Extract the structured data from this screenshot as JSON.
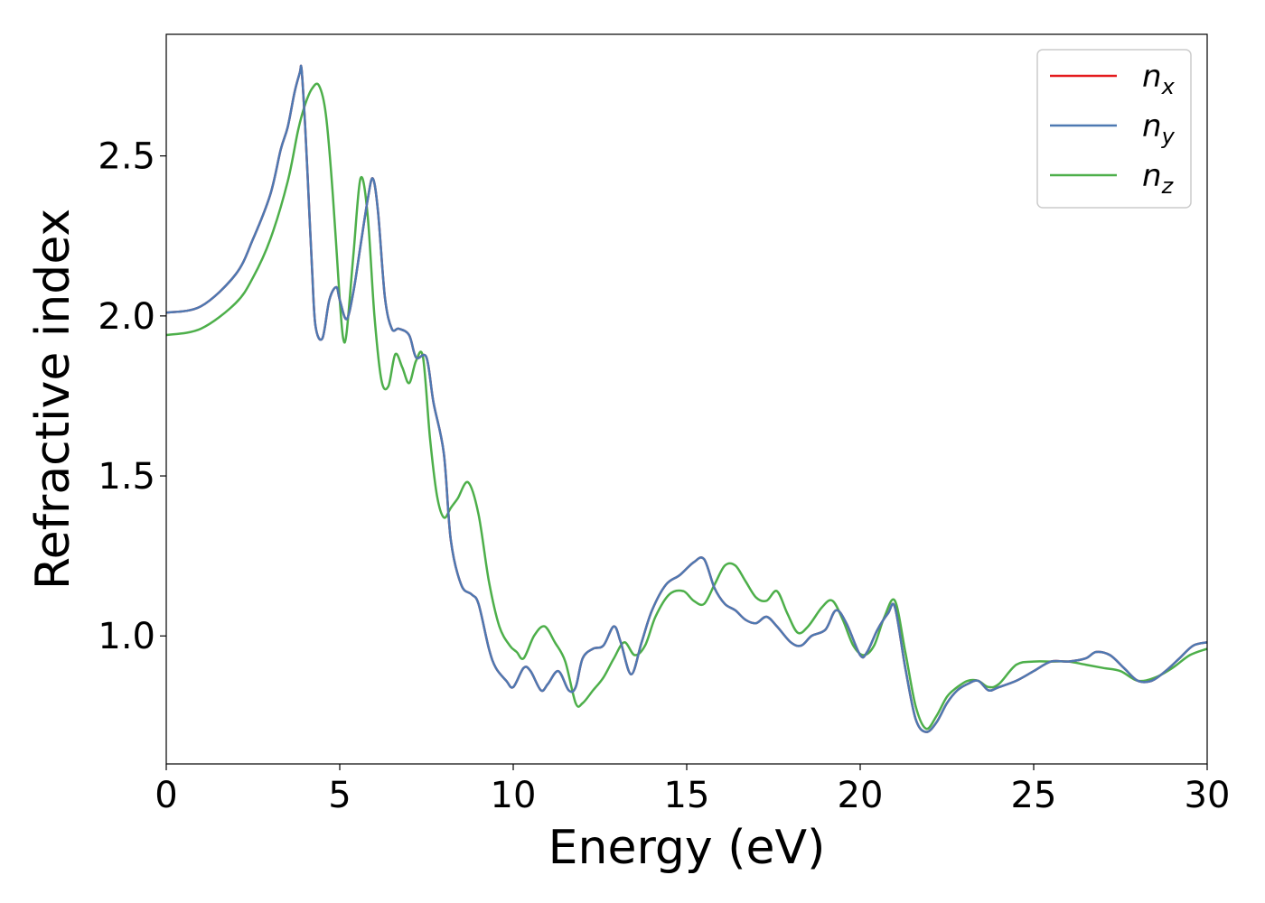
{
  "chart_data": {
    "type": "line",
    "xlabel": "Energy (eV)",
    "ylabel": "Refractive index",
    "xlim": [
      0,
      30
    ],
    "ylim": [
      0.6,
      2.88
    ],
    "xticks": [
      0,
      5,
      10,
      15,
      20,
      25,
      30
    ],
    "xtick_labels": [
      "0",
      "5",
      "10",
      "15",
      "20",
      "25",
      "30"
    ],
    "yticks": [
      1.0,
      1.5,
      2.0,
      2.5
    ],
    "ytick_labels": [
      "1.0",
      "1.5",
      "2.0",
      "2.5"
    ],
    "grid": false,
    "legend_position": "top-right",
    "series": [
      {
        "name": "n",
        "subscript": "x",
        "color": "#e41a1c",
        "x": [
          0,
          1,
          2,
          2.5,
          3,
          3.3,
          3.5,
          3.7,
          3.85,
          3.9,
          4.0,
          4.1,
          4.2,
          4.3,
          4.5,
          4.7,
          4.9,
          5.0,
          5.2,
          5.4,
          5.6,
          5.8,
          5.95,
          6.1,
          6.3,
          6.5,
          6.7,
          7.0,
          7.2,
          7.5,
          7.7,
          8.0,
          8.2,
          8.5,
          8.8,
          9.0,
          9.3,
          9.5,
          9.8,
          10.0,
          10.3,
          10.5,
          10.8,
          11.0,
          11.3,
          11.6,
          11.8,
          12.0,
          12.3,
          12.6,
          12.9,
          13.1,
          13.4,
          13.7,
          14.0,
          14.4,
          14.8,
          15.2,
          15.5,
          15.8,
          16.1,
          16.4,
          16.7,
          17.0,
          17.3,
          17.6,
          18.0,
          18.3,
          18.6,
          19.0,
          19.3,
          19.6,
          20.0,
          20.2,
          20.5,
          20.8,
          21.0,
          21.3,
          21.6,
          21.9,
          22.2,
          22.5,
          22.8,
          23.1,
          23.4,
          23.7,
          24.0,
          24.5,
          25.0,
          25.5,
          26.0,
          26.5,
          26.8,
          27.2,
          27.6,
          28.0,
          28.4,
          28.8,
          29.2,
          29.6,
          30.0
        ],
        "values": [
          2.01,
          2.03,
          2.13,
          2.24,
          2.38,
          2.52,
          2.59,
          2.7,
          2.76,
          2.77,
          2.6,
          2.38,
          2.15,
          1.97,
          1.93,
          2.05,
          2.09,
          2.05,
          1.99,
          2.08,
          2.22,
          2.36,
          2.43,
          2.33,
          2.06,
          1.96,
          1.96,
          1.94,
          1.87,
          1.87,
          1.73,
          1.57,
          1.3,
          1.16,
          1.13,
          1.1,
          0.96,
          0.9,
          0.86,
          0.84,
          0.9,
          0.89,
          0.83,
          0.85,
          0.89,
          0.83,
          0.84,
          0.93,
          0.96,
          0.97,
          1.03,
          0.98,
          0.88,
          0.98,
          1.08,
          1.16,
          1.19,
          1.23,
          1.24,
          1.15,
          1.1,
          1.08,
          1.05,
          1.04,
          1.06,
          1.03,
          0.98,
          0.97,
          1.0,
          1.02,
          1.08,
          1.04,
          0.94,
          0.95,
          1.02,
          1.07,
          1.09,
          0.9,
          0.74,
          0.7,
          0.73,
          0.79,
          0.83,
          0.85,
          0.86,
          0.83,
          0.84,
          0.86,
          0.89,
          0.92,
          0.92,
          0.93,
          0.95,
          0.94,
          0.9,
          0.86,
          0.86,
          0.89,
          0.93,
          0.97,
          0.98
        ]
      },
      {
        "name": "n",
        "subscript": "y",
        "color": "#4d79b2",
        "x": [
          0,
          1,
          2,
          2.5,
          3,
          3.3,
          3.5,
          3.7,
          3.85,
          3.9,
          4.0,
          4.1,
          4.2,
          4.3,
          4.5,
          4.7,
          4.9,
          5.0,
          5.2,
          5.4,
          5.6,
          5.8,
          5.95,
          6.1,
          6.3,
          6.5,
          6.7,
          7.0,
          7.2,
          7.5,
          7.7,
          8.0,
          8.2,
          8.5,
          8.8,
          9.0,
          9.3,
          9.5,
          9.8,
          10.0,
          10.3,
          10.5,
          10.8,
          11.0,
          11.3,
          11.6,
          11.8,
          12.0,
          12.3,
          12.6,
          12.9,
          13.1,
          13.4,
          13.7,
          14.0,
          14.4,
          14.8,
          15.2,
          15.5,
          15.8,
          16.1,
          16.4,
          16.7,
          17.0,
          17.3,
          17.6,
          18.0,
          18.3,
          18.6,
          19.0,
          19.3,
          19.6,
          20.0,
          20.2,
          20.5,
          20.8,
          21.0,
          21.3,
          21.6,
          21.9,
          22.2,
          22.5,
          22.8,
          23.1,
          23.4,
          23.7,
          24.0,
          24.5,
          25.0,
          25.5,
          26.0,
          26.5,
          26.8,
          27.2,
          27.6,
          28.0,
          28.4,
          28.8,
          29.2,
          29.6,
          30.0
        ],
        "values": [
          2.01,
          2.03,
          2.13,
          2.24,
          2.38,
          2.52,
          2.59,
          2.7,
          2.76,
          2.77,
          2.6,
          2.38,
          2.15,
          1.97,
          1.93,
          2.05,
          2.09,
          2.05,
          1.99,
          2.08,
          2.22,
          2.36,
          2.43,
          2.33,
          2.06,
          1.96,
          1.96,
          1.94,
          1.87,
          1.87,
          1.73,
          1.57,
          1.3,
          1.16,
          1.13,
          1.1,
          0.96,
          0.9,
          0.86,
          0.84,
          0.9,
          0.89,
          0.83,
          0.85,
          0.89,
          0.83,
          0.84,
          0.93,
          0.96,
          0.97,
          1.03,
          0.98,
          0.88,
          0.98,
          1.08,
          1.16,
          1.19,
          1.23,
          1.24,
          1.15,
          1.1,
          1.08,
          1.05,
          1.04,
          1.06,
          1.03,
          0.98,
          0.97,
          1.0,
          1.02,
          1.08,
          1.04,
          0.94,
          0.95,
          1.02,
          1.07,
          1.09,
          0.9,
          0.74,
          0.7,
          0.73,
          0.79,
          0.83,
          0.85,
          0.86,
          0.83,
          0.84,
          0.86,
          0.89,
          0.92,
          0.92,
          0.93,
          0.95,
          0.94,
          0.9,
          0.86,
          0.86,
          0.89,
          0.93,
          0.97,
          0.98
        ]
      },
      {
        "name": "n",
        "subscript": "z",
        "color": "#4daf4a",
        "x": [
          0,
          1,
          2,
          2.5,
          3,
          3.5,
          3.8,
          4.0,
          4.2,
          4.4,
          4.6,
          4.8,
          5.0,
          5.1,
          5.2,
          5.4,
          5.6,
          5.8,
          6.0,
          6.2,
          6.4,
          6.6,
          6.8,
          7.0,
          7.2,
          7.4,
          7.6,
          7.8,
          8.0,
          8.2,
          8.4,
          8.7,
          9.0,
          9.3,
          9.6,
          9.9,
          10.1,
          10.3,
          10.6,
          10.9,
          11.2,
          11.5,
          11.8,
          12.0,
          12.3,
          12.6,
          12.9,
          13.2,
          13.5,
          13.8,
          14.1,
          14.5,
          14.9,
          15.2,
          15.5,
          15.8,
          16.1,
          16.4,
          16.7,
          17.0,
          17.3,
          17.6,
          17.9,
          18.2,
          18.5,
          18.9,
          19.2,
          19.5,
          19.8,
          20.1,
          20.4,
          20.7,
          21.0,
          21.3,
          21.6,
          21.9,
          22.2,
          22.5,
          22.8,
          23.1,
          23.4,
          23.7,
          24.0,
          24.5,
          25.0,
          25.5,
          26.0,
          26.5,
          27.0,
          27.5,
          28.0,
          28.5,
          29.0,
          29.5,
          30.0
        ],
        "values": [
          1.94,
          1.96,
          2.04,
          2.12,
          2.24,
          2.42,
          2.58,
          2.66,
          2.71,
          2.72,
          2.63,
          2.38,
          2.05,
          1.93,
          1.95,
          2.2,
          2.43,
          2.32,
          2.0,
          1.8,
          1.78,
          1.88,
          1.84,
          1.79,
          1.86,
          1.87,
          1.62,
          1.44,
          1.37,
          1.4,
          1.43,
          1.48,
          1.38,
          1.17,
          1.03,
          0.97,
          0.95,
          0.93,
          1.0,
          1.03,
          0.98,
          0.92,
          0.79,
          0.79,
          0.83,
          0.87,
          0.93,
          0.98,
          0.94,
          0.97,
          1.06,
          1.13,
          1.14,
          1.11,
          1.1,
          1.16,
          1.22,
          1.22,
          1.17,
          1.12,
          1.11,
          1.14,
          1.07,
          1.01,
          1.03,
          1.09,
          1.11,
          1.05,
          0.97,
          0.94,
          0.97,
          1.06,
          1.11,
          0.95,
          0.78,
          0.71,
          0.75,
          0.81,
          0.84,
          0.86,
          0.86,
          0.84,
          0.85,
          0.91,
          0.92,
          0.92,
          0.92,
          0.91,
          0.9,
          0.89,
          0.86,
          0.87,
          0.9,
          0.94,
          0.96
        ]
      }
    ]
  }
}
